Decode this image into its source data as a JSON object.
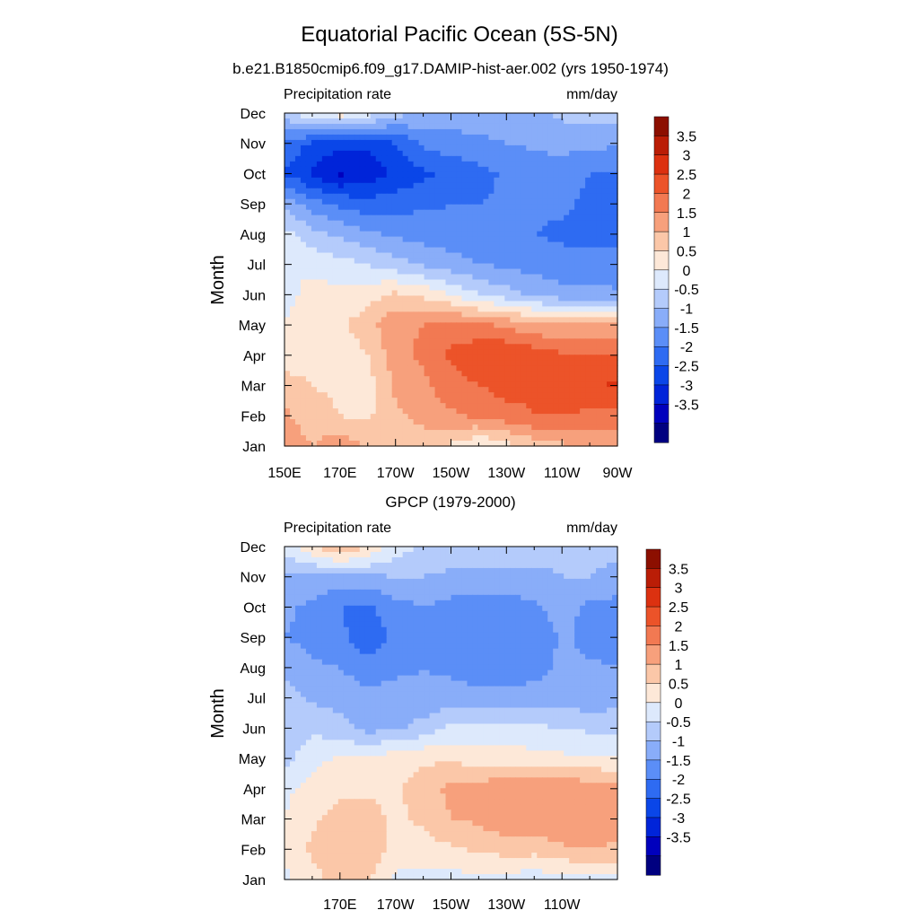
{
  "title": "Equatorial Pacific Ocean (5S-5N)",
  "colors": {
    "levels": [
      "#000080",
      "#0000bd",
      "#0024d9",
      "#0a46e8",
      "#2e6bf2",
      "#5b8ef7",
      "#89adf9",
      "#b4cbfb",
      "#dde9fc",
      "#fde8d8",
      "#fbc7a8",
      "#f7a07c",
      "#f27952",
      "#ec5329",
      "#dc3110",
      "#ba1d06",
      "#8c0f00"
    ],
    "frame": "#000000"
  },
  "chart_data": [
    {
      "type": "heatmap",
      "title": "b.e21.B1850cmip6.f09_g17.DAMIP-hist-aer.002 (yrs 1950-1974)",
      "left_label": "Precipitation rate",
      "right_label": "mm/day",
      "ylabel": "Month",
      "xlabel": "",
      "x_ticks": [
        "150E",
        "170E",
        "170W",
        "150W",
        "130W",
        "110W",
        "90W"
      ],
      "y_ticks": [
        "Jan",
        "Feb",
        "Mar",
        "Apr",
        "May",
        "Jun",
        "Jul",
        "Aug",
        "Sep",
        "Oct",
        "Nov",
        "Dec"
      ],
      "x": [
        150,
        160,
        170,
        180,
        190,
        200,
        210,
        220,
        230,
        240,
        250,
        260,
        270
      ],
      "y": [
        "Jan",
        "Feb",
        "Mar",
        "Apr",
        "May",
        "Jun",
        "Jul",
        "Aug",
        "Sep",
        "Oct",
        "Nov",
        "Dec"
      ],
      "levels": [
        -3.5,
        -3,
        -2.5,
        -2,
        -1.5,
        -1,
        -0.5,
        0,
        0.5,
        1,
        1.5,
        2,
        2.5,
        3,
        3.5
      ],
      "colorbar_labels": [
        "3.5",
        "3",
        "2.5",
        "2",
        "1.5",
        "1",
        "0.5",
        "0",
        "-0.5",
        "-1",
        "-1.5",
        "-2",
        "-2.5",
        "-3",
        "-3.5"
      ],
      "z": [
        [
          1.8,
          1.5,
          1.9,
          1.4,
          1.0,
          1.2,
          0.9,
          0.5,
          0.8,
          1.2,
          1.4,
          1.5,
          1.6
        ],
        [
          1.6,
          1.2,
          1.0,
          0.9,
          1.4,
          1.7,
          1.9,
          2.1,
          2.3,
          2.5,
          2.5,
          2.4,
          2.3
        ],
        [
          1.4,
          1.0,
          0.9,
          0.8,
          1.6,
          1.9,
          2.3,
          2.5,
          2.7,
          2.6,
          2.7,
          2.9,
          3.1
        ],
        [
          0.5,
          0.7,
          0.6,
          1.0,
          1.8,
          2.1,
          2.6,
          2.9,
          3.0,
          2.8,
          2.6,
          2.5,
          2.5
        ],
        [
          0.6,
          0.8,
          0.9,
          1.3,
          1.9,
          2.0,
          2.2,
          2.1,
          1.9,
          1.6,
          1.5,
          1.5,
          1.5
        ],
        [
          0.2,
          0.8,
          0.6,
          0.8,
          1.1,
          0.9,
          0.5,
          0.0,
          -0.3,
          -0.6,
          -0.8,
          -0.8,
          -0.9
        ],
        [
          0.5,
          0.3,
          0.2,
          0.0,
          -0.3,
          -0.6,
          -0.8,
          -1.0,
          -1.1,
          -1.2,
          -1.3,
          -1.3,
          -1.4
        ],
        [
          0.2,
          -0.3,
          -0.6,
          -0.9,
          -1.1,
          -1.2,
          -1.3,
          -1.4,
          -1.5,
          -1.5,
          -1.6,
          -1.7,
          -1.6
        ],
        [
          -0.6,
          -1.3,
          -1.6,
          -1.8,
          -1.7,
          -1.6,
          -1.5,
          -1.5,
          -1.4,
          -1.4,
          -1.4,
          -1.6,
          -1.7
        ],
        [
          -2.0,
          -2.6,
          -3.1,
          -2.8,
          -2.4,
          -2.1,
          -1.9,
          -1.7,
          -1.4,
          -1.3,
          -1.3,
          -1.5,
          -1.6
        ],
        [
          -1.6,
          -2.1,
          -2.3,
          -2.4,
          -2.0,
          -1.4,
          -1.2,
          -1.1,
          -1.0,
          -0.9,
          -0.8,
          -0.9,
          -0.9
        ],
        [
          -0.2,
          0.5,
          0.8,
          0.3,
          -0.3,
          -0.6,
          -0.7,
          -0.8,
          -0.7,
          -0.6,
          -0.4,
          -0.3,
          -0.2
        ]
      ]
    },
    {
      "type": "heatmap",
      "title": "GPCP (1979-2000)",
      "left_label": "Precipitation rate",
      "right_label": "mm/day",
      "ylabel": "Month",
      "xlabel": "",
      "x_ticks": [
        "170E",
        "170W",
        "150W",
        "130W",
        "110W"
      ],
      "y_ticks": [
        "Jan",
        "Feb",
        "Mar",
        "Apr",
        "May",
        "Jun",
        "Jul",
        "Aug",
        "Sep",
        "Oct",
        "Nov",
        "Dec"
      ],
      "x": [
        150,
        160,
        170,
        180,
        190,
        200,
        210,
        220,
        230,
        240,
        250,
        260,
        270
      ],
      "y": [
        "Jan",
        "Feb",
        "Mar",
        "Apr",
        "May",
        "Jun",
        "Jul",
        "Aug",
        "Sep",
        "Oct",
        "Nov",
        "Dec"
      ],
      "levels": [
        -3.5,
        -3,
        -2.5,
        -2,
        -1.5,
        -1,
        -0.5,
        0,
        0.5,
        1,
        1.5,
        2,
        2.5,
        3,
        3.5
      ],
      "colorbar_labels": [
        "3.5",
        "3",
        "2.5",
        "2",
        "1.5",
        "1",
        "0.5",
        "0",
        "-0.5",
        "-1",
        "-1.5",
        "-2",
        "-2.5",
        "-3",
        "-3.5"
      ],
      "z": [
        [
          0.4,
          0.8,
          1.3,
          1.1,
          0.4,
          0.3,
          0.3,
          0.4,
          0.3,
          0.2,
          0.3,
          0.4,
          0.4
        ],
        [
          0.6,
          1.1,
          1.4,
          1.3,
          0.8,
          0.8,
          0.9,
          1.1,
          1.2,
          1.2,
          1.4,
          1.5,
          1.4
        ],
        [
          0.5,
          0.9,
          1.2,
          1.2,
          0.9,
          1.1,
          1.5,
          1.6,
          1.9,
          1.8,
          2.0,
          2.0,
          1.8
        ],
        [
          0.4,
          0.7,
          0.9,
          0.9,
          0.9,
          1.3,
          1.6,
          1.7,
          2.0,
          1.9,
          2.0,
          1.8,
          1.6
        ],
        [
          -0.2,
          0.3,
          0.6,
          0.6,
          0.8,
          0.9,
          0.9,
          0.8,
          0.7,
          0.7,
          0.6,
          0.6,
          0.6
        ],
        [
          -0.3,
          -0.1,
          -0.3,
          -0.7,
          -0.6,
          -0.3,
          0.1,
          0.2,
          0.2,
          0.1,
          0.0,
          -0.1,
          -0.2
        ],
        [
          -0.3,
          -0.6,
          -0.7,
          -0.8,
          -0.8,
          -0.9,
          -0.8,
          -0.8,
          -0.8,
          -0.8,
          -0.8,
          -0.8,
          -0.7
        ],
        [
          -0.6,
          -0.9,
          -1.0,
          -1.3,
          -1.1,
          -1.0,
          -1.1,
          -1.3,
          -1.3,
          -1.2,
          -0.9,
          -0.9,
          -1.0
        ],
        [
          -1.0,
          -1.2,
          -1.4,
          -1.8,
          -1.4,
          -1.1,
          -1.3,
          -1.5,
          -1.5,
          -1.4,
          -0.9,
          -1.2,
          -1.3
        ],
        [
          -0.9,
          -1.1,
          -1.5,
          -1.6,
          -1.2,
          -1.0,
          -1.2,
          -1.3,
          -1.3,
          -1.1,
          -0.8,
          -1.1,
          -1.2
        ],
        [
          -0.6,
          -0.7,
          -0.7,
          -0.6,
          -0.5,
          -0.5,
          -0.6,
          -0.6,
          -0.6,
          -0.6,
          -0.5,
          -0.5,
          -0.6
        ],
        [
          0.2,
          1.0,
          1.6,
          1.0,
          0.3,
          -0.1,
          -0.2,
          -0.2,
          -0.3,
          -0.3,
          -0.4,
          -0.4,
          -0.4
        ]
      ]
    }
  ]
}
